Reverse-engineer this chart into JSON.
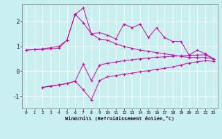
{
  "xlabel": "Windchill (Refroidissement éolien,°C)",
  "bg_color": "#c8f0f0",
  "line_color": "#cc00aa",
  "grid_color": "#ffffff",
  "xlim": [
    -0.5,
    23.5
  ],
  "ylim": [
    -1.5,
    2.7
  ],
  "yticks": [
    -1,
    0,
    1,
    2
  ],
  "xticks": [
    0,
    1,
    2,
    3,
    4,
    5,
    6,
    7,
    8,
    9,
    10,
    11,
    12,
    13,
    14,
    15,
    16,
    17,
    18,
    19,
    20,
    21,
    22,
    23
  ],
  "line1_x": [
    0,
    1,
    2,
    3,
    4,
    5,
    6,
    7,
    8,
    9,
    10,
    11,
    12,
    13,
    14,
    15,
    16,
    17,
    18,
    19,
    20,
    21,
    22,
    23
  ],
  "line1_y": [
    0.85,
    0.87,
    0.88,
    0.9,
    0.93,
    1.25,
    2.3,
    1.95,
    1.5,
    1.55,
    1.45,
    1.3,
    1.9,
    1.75,
    1.9,
    1.35,
    1.75,
    1.35,
    1.2,
    1.2,
    0.65,
    0.85,
    0.7,
    0.5
  ],
  "line2_x": [
    0,
    1,
    2,
    3,
    4,
    5,
    6,
    7,
    8,
    9,
    10,
    11,
    12,
    13,
    14,
    15,
    16,
    17,
    18,
    19,
    20,
    21,
    22,
    23
  ],
  "line2_y": [
    0.85,
    0.87,
    0.9,
    0.95,
    1.0,
    1.25,
    2.28,
    2.55,
    1.5,
    1.3,
    1.25,
    1.1,
    1.0,
    0.92,
    0.85,
    0.8,
    0.75,
    0.7,
    0.65,
    0.6,
    0.55,
    0.55,
    0.55,
    0.5
  ],
  "line3_x": [
    2,
    3,
    4,
    5,
    6,
    7,
    8,
    9,
    10,
    11,
    12,
    13,
    14,
    15,
    16,
    17,
    18,
    19,
    20,
    21,
    22,
    23
  ],
  "line3_y": [
    -0.65,
    -0.6,
    -0.55,
    -0.5,
    -0.4,
    -0.75,
    -1.15,
    -0.38,
    -0.22,
    -0.18,
    -0.12,
    -0.08,
    -0.02,
    0.02,
    0.07,
    0.12,
    0.17,
    0.25,
    0.33,
    0.38,
    0.42,
    0.4
  ],
  "line4_x": [
    2,
    3,
    4,
    5,
    6,
    7,
    8,
    9,
    10,
    11,
    12,
    13,
    14,
    15,
    16,
    17,
    18,
    19,
    20,
    21,
    22,
    23
  ],
  "line4_y": [
    -0.65,
    -0.6,
    -0.55,
    -0.5,
    -0.4,
    0.28,
    -0.38,
    0.25,
    0.32,
    0.37,
    0.42,
    0.46,
    0.5,
    0.53,
    0.56,
    0.58,
    0.6,
    0.62,
    0.64,
    0.65,
    0.66,
    0.5
  ]
}
